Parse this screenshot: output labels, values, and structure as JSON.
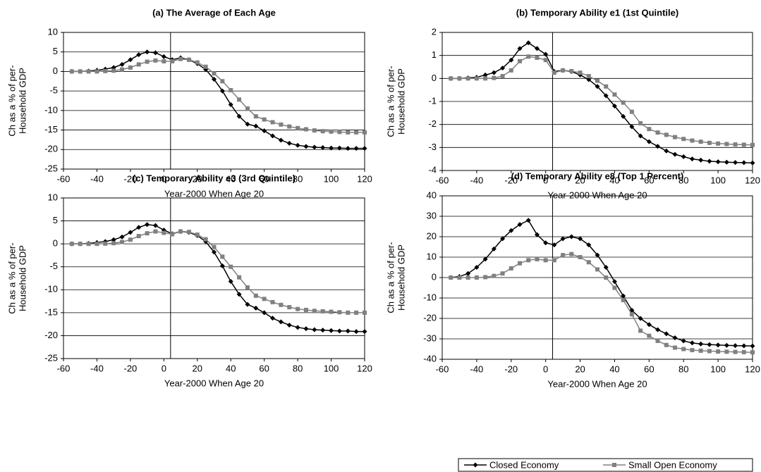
{
  "chart_data": [
    {
      "type": "line",
      "title": "(a) The Average of Each Age",
      "xlabel": "Year-2000 When Age 20",
      "ylabel": [
        "Ch as a % of per-",
        "Household GDP"
      ],
      "x": [
        -55,
        -50,
        -45,
        -40,
        -35,
        -30,
        -25,
        -20,
        -15,
        -10,
        -5,
        0,
        5,
        10,
        15,
        20,
        25,
        30,
        35,
        40,
        45,
        50,
        55,
        60,
        65,
        70,
        75,
        80,
        85,
        90,
        95,
        100,
        105,
        110,
        115,
        120
      ],
      "series": [
        {
          "name": "Closed Economy",
          "color": "#000000",
          "values": [
            0,
            0,
            0.1,
            0.3,
            0.6,
            1.0,
            1.8,
            3.0,
            4.3,
            5.0,
            4.8,
            3.8,
            3.0,
            3.5,
            3.0,
            2.0,
            0.5,
            -2,
            -5,
            -8.5,
            -11.5,
            -13.5,
            -14,
            -15.2,
            -16.5,
            -17.6,
            -18.4,
            -18.9,
            -19.2,
            -19.4,
            -19.5,
            -19.6,
            -19.6,
            -19.7,
            -19.7,
            -19.7
          ]
        },
        {
          "name": "Small Open Economy",
          "color": "#808080",
          "values": [
            0,
            0,
            0,
            0,
            0.1,
            0.2,
            0.5,
            1.0,
            1.8,
            2.5,
            2.8,
            2.6,
            2.6,
            3.2,
            3.0,
            2.3,
            1.2,
            -0.5,
            -2.5,
            -4.8,
            -7.2,
            -9.5,
            -11.5,
            -12.3,
            -13.0,
            -13.6,
            -14.1,
            -14.5,
            -14.8,
            -15.1,
            -15.3,
            -15.4,
            -15.5,
            -15.6,
            -15.6,
            -15.6
          ]
        }
      ],
      "xlim": [
        -60,
        120
      ],
      "xticks": [
        -60,
        -40,
        -20,
        0,
        20,
        40,
        60,
        80,
        100,
        120
      ],
      "ylim": [
        -25,
        10
      ],
      "yticks": [
        -25,
        -20,
        -15,
        -10,
        -5,
        0,
        5,
        10
      ],
      "grid": true,
      "vline": 4
    },
    {
      "type": "line",
      "title": "(b) Temporary Ability e1 (1st Quintile)",
      "xlabel": "Year-2000 When Age 20",
      "ylabel": [
        "Ch as a % of per-",
        "Household GDP"
      ],
      "x": [
        -55,
        -50,
        -45,
        -40,
        -35,
        -30,
        -25,
        -20,
        -15,
        -10,
        -5,
        0,
        5,
        10,
        15,
        20,
        25,
        30,
        35,
        40,
        45,
        50,
        55,
        60,
        65,
        70,
        75,
        80,
        85,
        90,
        95,
        100,
        105,
        110,
        115,
        120
      ],
      "series": [
        {
          "name": "Closed Economy",
          "color": "#000000",
          "values": [
            0,
            0,
            0.02,
            0.05,
            0.15,
            0.25,
            0.45,
            0.8,
            1.3,
            1.55,
            1.3,
            1.05,
            0.3,
            0.35,
            0.3,
            0.15,
            -0.05,
            -0.35,
            -0.75,
            -1.2,
            -1.65,
            -2.1,
            -2.5,
            -2.75,
            -2.95,
            -3.15,
            -3.3,
            -3.4,
            -3.5,
            -3.55,
            -3.6,
            -3.62,
            -3.64,
            -3.65,
            -3.66,
            -3.67
          ]
        },
        {
          "name": "Small Open Economy",
          "color": "#808080",
          "values": [
            0,
            0,
            0,
            0,
            0,
            0.02,
            0.1,
            0.35,
            0.75,
            0.95,
            0.9,
            0.8,
            0.25,
            0.35,
            0.32,
            0.25,
            0.1,
            -0.1,
            -0.35,
            -0.7,
            -1.05,
            -1.45,
            -1.95,
            -2.2,
            -2.35,
            -2.45,
            -2.55,
            -2.63,
            -2.7,
            -2.75,
            -2.8,
            -2.83,
            -2.85,
            -2.87,
            -2.88,
            -2.89
          ]
        }
      ],
      "xlim": [
        -60,
        120
      ],
      "xticks": [
        -60,
        -40,
        -20,
        0,
        20,
        40,
        60,
        80,
        100,
        120
      ],
      "ylim": [
        -4,
        2
      ],
      "yticks": [
        -4,
        -3,
        -2,
        -1,
        0,
        1,
        2
      ],
      "grid": true,
      "vline": 4
    },
    {
      "type": "line",
      "title": "(c) Temporary Ability e3 (3rd Quintile)",
      "xlabel": "Year-2000 When Age 20",
      "ylabel": [
        "Ch as a % of per-",
        "Household GDP"
      ],
      "x": [
        -55,
        -50,
        -45,
        -40,
        -35,
        -30,
        -25,
        -20,
        -15,
        -10,
        -5,
        0,
        5,
        10,
        15,
        20,
        25,
        30,
        35,
        40,
        45,
        50,
        55,
        60,
        65,
        70,
        75,
        80,
        85,
        90,
        95,
        100,
        105,
        110,
        115,
        120
      ],
      "series": [
        {
          "name": "Closed Economy",
          "color": "#000000",
          "values": [
            0,
            0,
            0.1,
            0.3,
            0.5,
            0.9,
            1.5,
            2.5,
            3.6,
            4.2,
            4.0,
            3.0,
            2.2,
            2.7,
            2.5,
            1.8,
            0.5,
            -1.8,
            -4.8,
            -8.2,
            -11,
            -13.2,
            -14,
            -15,
            -16.2,
            -17,
            -17.7,
            -18.2,
            -18.5,
            -18.7,
            -18.8,
            -18.9,
            -19,
            -19,
            -19.1,
            -19.1
          ]
        },
        {
          "name": "Small Open Economy",
          "color": "#808080",
          "values": [
            0,
            0,
            0,
            0,
            0.05,
            0.15,
            0.4,
            0.9,
            1.7,
            2.3,
            2.7,
            2.4,
            2.1,
            2.7,
            2.6,
            2.0,
            1.0,
            -0.7,
            -2.8,
            -5,
            -7.3,
            -9.5,
            -11.3,
            -12,
            -12.7,
            -13.3,
            -13.8,
            -14.2,
            -14.4,
            -14.6,
            -14.7,
            -14.8,
            -14.9,
            -15,
            -15,
            -15
          ]
        }
      ],
      "xlim": [
        -60,
        120
      ],
      "xticks": [
        -60,
        -40,
        -20,
        0,
        20,
        40,
        60,
        80,
        100,
        120
      ],
      "ylim": [
        -25,
        10
      ],
      "yticks": [
        -25,
        -20,
        -15,
        -10,
        -5,
        0,
        5,
        10
      ],
      "grid": true,
      "vline": 4
    },
    {
      "type": "line",
      "title": "(d) Temporary Ability e8 (Top 1 Percent)",
      "xlabel": "Year-2000 When Age 20",
      "ylabel": [
        "Ch as a % of per-",
        "Household GDP"
      ],
      "x": [
        -55,
        -50,
        -45,
        -40,
        -35,
        -30,
        -25,
        -20,
        -15,
        -10,
        -5,
        0,
        5,
        10,
        15,
        20,
        25,
        30,
        35,
        40,
        45,
        50,
        55,
        60,
        65,
        70,
        75,
        80,
        85,
        90,
        95,
        100,
        105,
        110,
        115,
        120
      ],
      "series": [
        {
          "name": "Closed Economy",
          "color": "#000000",
          "values": [
            0,
            0.5,
            2,
            5,
            9,
            14,
            19,
            23,
            26,
            28,
            21,
            17,
            16,
            19,
            20,
            19,
            16,
            11,
            5,
            -2,
            -9,
            -16,
            -20,
            -23,
            -25.5,
            -27.5,
            -29.5,
            -31,
            -32,
            -32.5,
            -32.8,
            -33,
            -33.2,
            -33.3,
            -33.4,
            -33.5
          ]
        },
        {
          "name": "Small Open Economy",
          "color": "#808080",
          "values": [
            0,
            0,
            0,
            0,
            0.2,
            0.8,
            2,
            4.5,
            7,
            8.5,
            9,
            8.5,
            8.5,
            11,
            11.5,
            10,
            7.5,
            4,
            0,
            -5,
            -11,
            -18,
            -26,
            -28.5,
            -31,
            -33,
            -34.3,
            -35,
            -35.5,
            -35.8,
            -36,
            -36.2,
            -36.3,
            -36.4,
            -36.5,
            -36.6
          ]
        }
      ],
      "xlim": [
        -60,
        120
      ],
      "xticks": [
        -60,
        -40,
        -20,
        0,
        20,
        40,
        60,
        80,
        100,
        120
      ],
      "ylim": [
        -40,
        40
      ],
      "yticks": [
        -40,
        -30,
        -20,
        -10,
        0,
        10,
        20,
        30,
        40
      ],
      "grid": true,
      "vline": 4
    }
  ]
}
